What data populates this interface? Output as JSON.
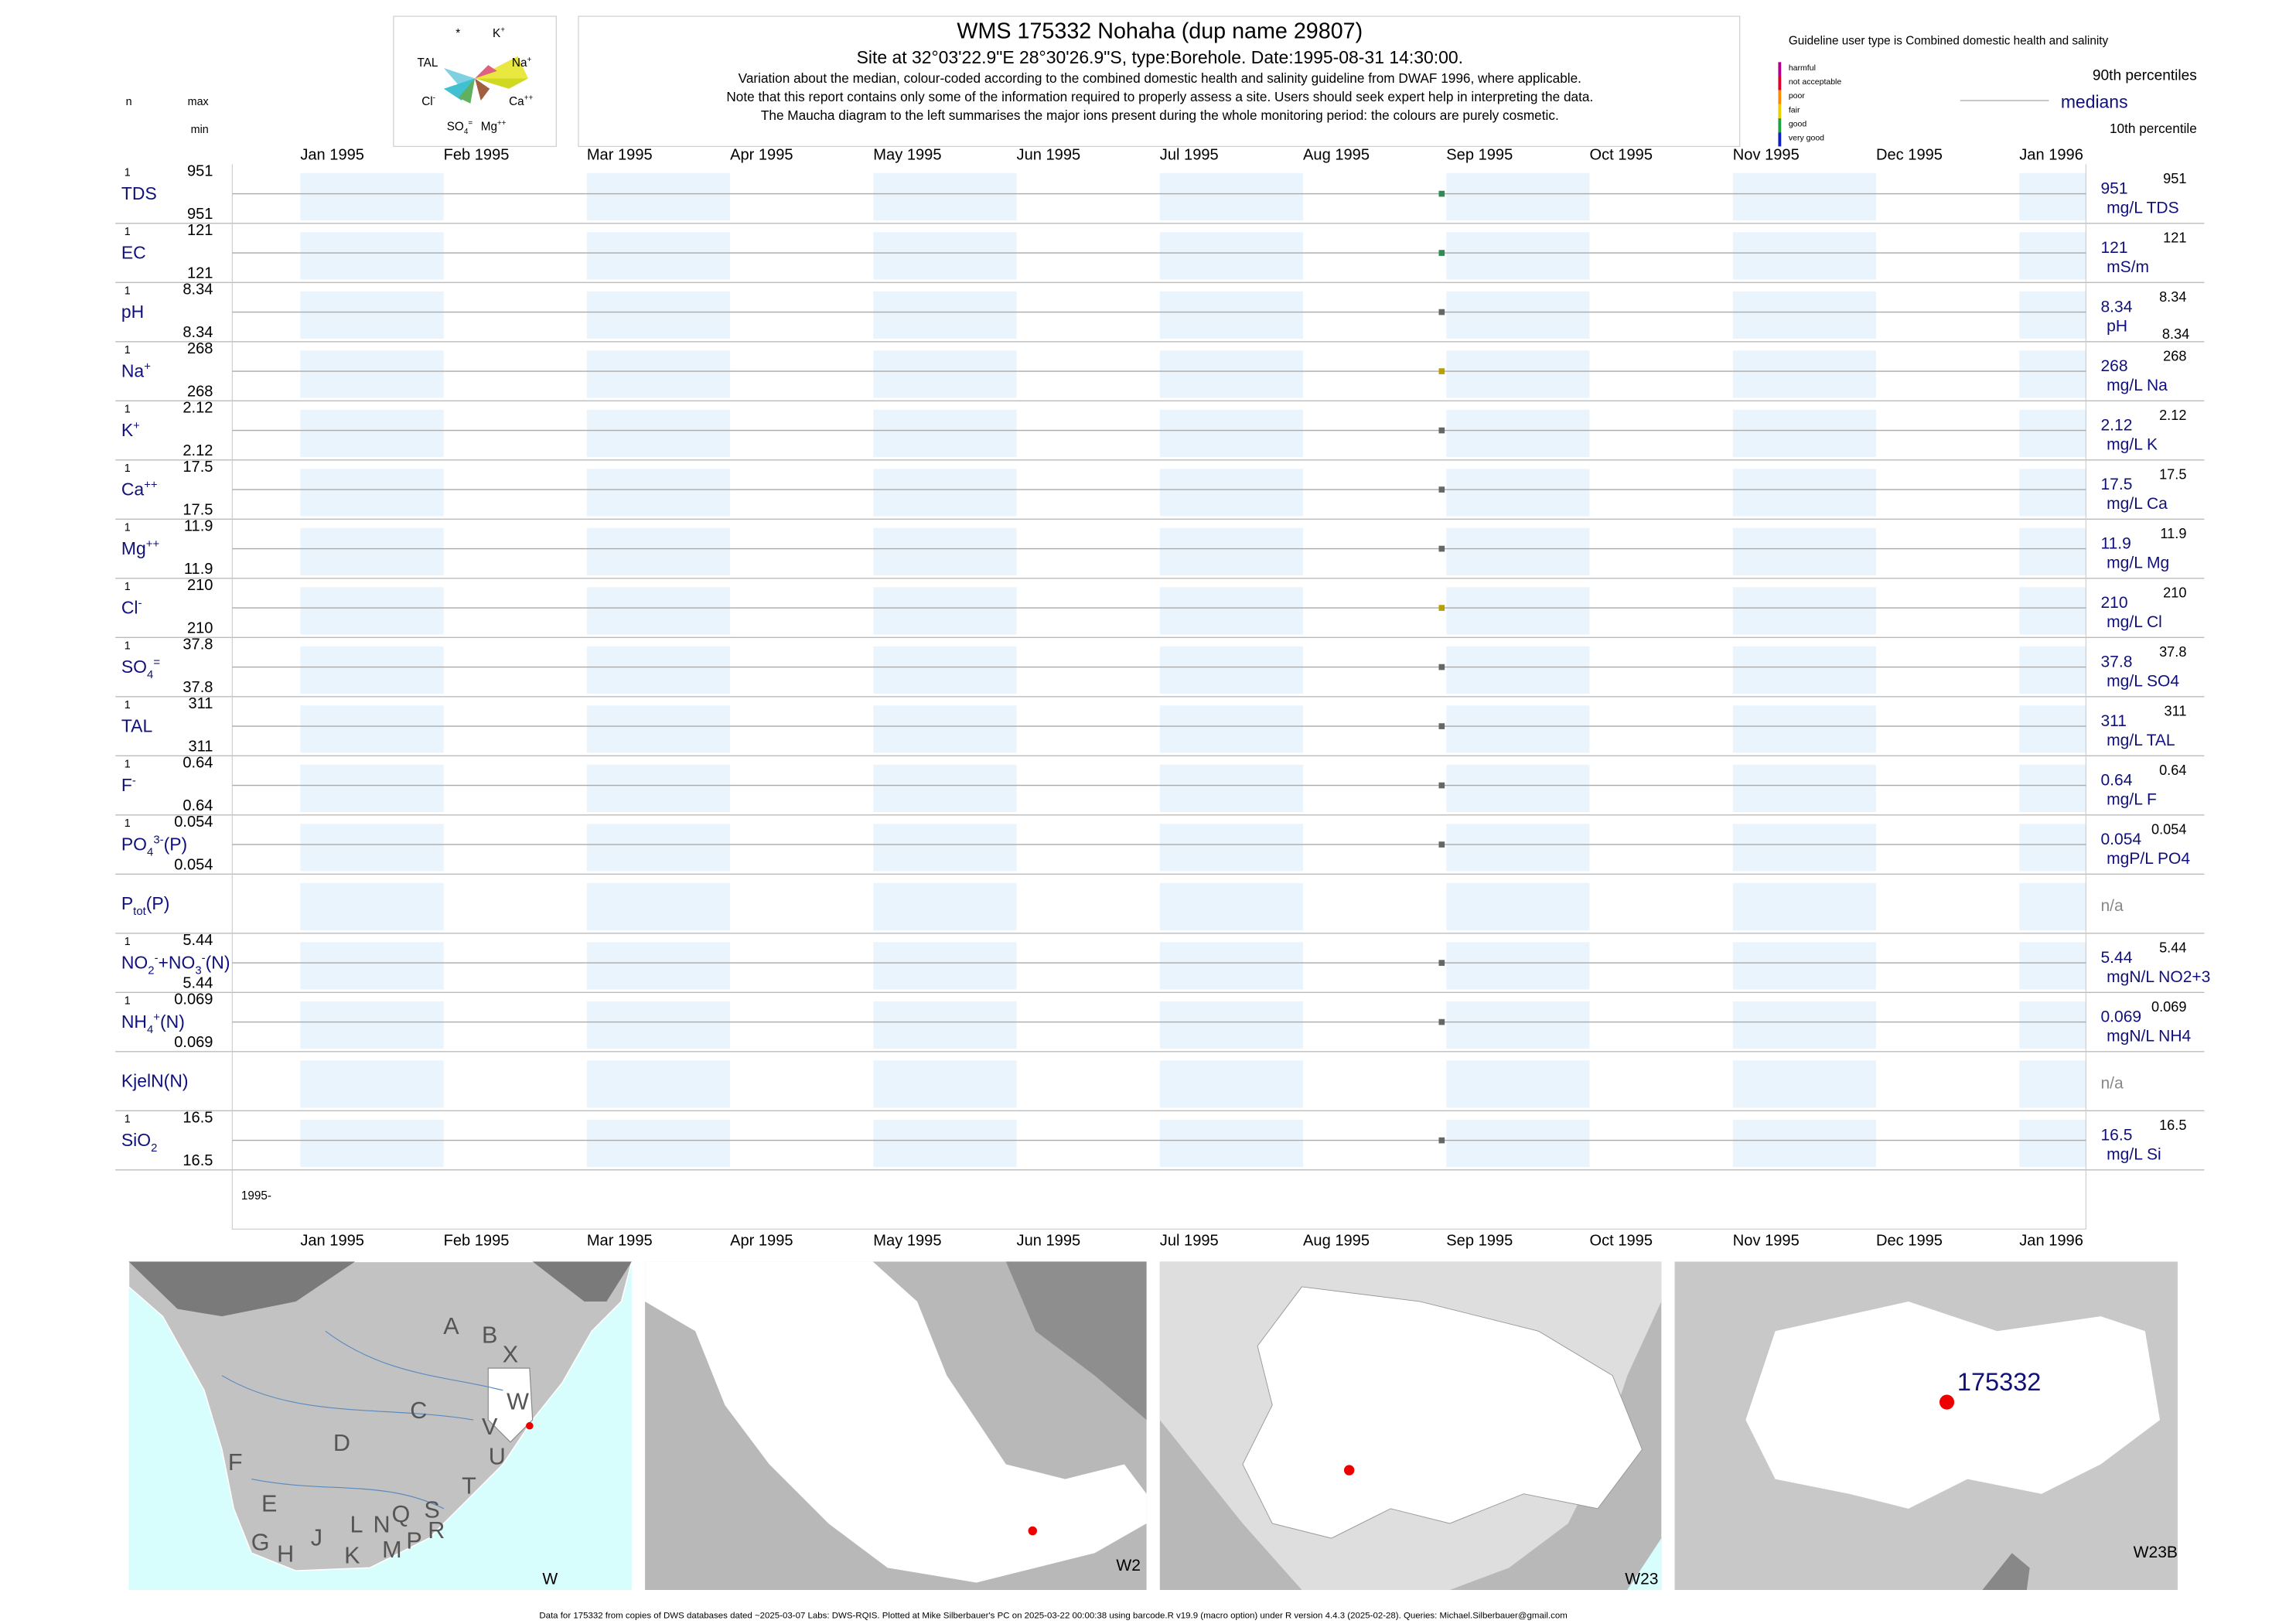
{
  "header": {
    "title": "WMS 175332  Nohaha (dup name 29807)",
    "site": "Site at 32°03'22.9\"E 28°30'26.9\"S, type:Borehole. Date:",
    "date": "1995-08-31",
    "time": " 14:30:00.",
    "notes": [
      "Variation about the median,  colour-coded according to the combined domestic health and salinity guideline from DWAF 1996, where applicable.",
      "Note that this report contains only some of the information required to properly assess a site. Users should seek expert help in interpreting the data.",
      "The Maucha diagram to the left summarises the major ions present during the whole monitoring period: the colours are purely cosmetic."
    ]
  },
  "maucha": [
    [
      {
        "text": "*"
      }
    ],
    [
      {
        "text": "K"
      },
      {
        "text": "+",
        "style": "sup"
      }
    ],
    [
      {
        "text": "TAL"
      }
    ],
    [
      {
        "text": "Na"
      },
      {
        "text": "+",
        "style": "sup"
      }
    ],
    [
      {
        "text": "Cl"
      },
      {
        "text": "-",
        "style": "sup"
      }
    ],
    [
      {
        "text": "Ca"
      },
      {
        "text": "++",
        "style": "sup"
      }
    ],
    [
      {
        "text": "SO"
      },
      {
        "text": "4",
        "style": "sub"
      },
      {
        "text": "=",
        "style": "sup"
      }
    ],
    [
      {
        "text": "Mg"
      },
      {
        "text": "++",
        "style": "sup"
      }
    ]
  ],
  "columns": {
    "n": "n",
    "max": "max",
    "min": "min"
  },
  "legend": {
    "guideline": "Guideline user type is Combined domestic health and salinity",
    "classes": [
      {
        "name": "harmful",
        "color": "#b0008a"
      },
      {
        "name": "not acceptable",
        "color": "#e0002a"
      },
      {
        "name": "poor",
        "color": "#ff8c00"
      },
      {
        "name": "fair",
        "color": "#e8d000"
      },
      {
        "name": "good",
        "color": "#20a040"
      },
      {
        "name": "very good",
        "color": "#1020c0"
      }
    ],
    "p90": "90th percentiles",
    "median": "medians",
    "p10": "10th percentile"
  },
  "months": [
    "Jan 1995",
    "Feb 1995",
    "Mar 1995",
    "Apr 1995",
    "May 1995",
    "Jun 1995",
    "Jul 1995",
    "Aug 1995",
    "Sep 1995",
    "Oct 1995",
    "Nov 1995",
    "Dec 1995",
    "Jan 1996"
  ],
  "year_label": "1995-",
  "rows": [
    {
      "label": [
        {
          "text": "TDS"
        }
      ],
      "n": 1,
      "max": 951,
      "min": 951,
      "median": 951,
      "p90": 951,
      "unit": "mg/L TDS",
      "color": "#2e8b57"
    },
    {
      "label": [
        {
          "text": "EC"
        }
      ],
      "n": 1,
      "max": 121,
      "min": 121,
      "median": 121,
      "p90": 121,
      "unit": "mS/m",
      "color": "#2e8b57"
    },
    {
      "label": [
        {
          "text": "pH"
        }
      ],
      "n": 1,
      "max": 8.34,
      "min": 8.34,
      "median": 8.34,
      "p90": 8.34,
      "p10": 8.34,
      "unit": "pH",
      "color": "#666666"
    },
    {
      "label": [
        {
          "text": "Na"
        },
        {
          "text": "+",
          "style": "sup"
        }
      ],
      "n": 1,
      "max": 268,
      "min": 268,
      "median": 268,
      "p90": 268,
      "unit": "mg/L Na",
      "color": "#b8a000"
    },
    {
      "label": [
        {
          "text": "K"
        },
        {
          "text": "+",
          "style": "sup"
        }
      ],
      "n": 1,
      "max": 2.12,
      "min": 2.12,
      "median": 2.12,
      "p90": 2.12,
      "unit": "mg/L K",
      "color": "#666666"
    },
    {
      "label": [
        {
          "text": "Ca"
        },
        {
          "text": "++",
          "style": "sup"
        }
      ],
      "n": 1,
      "max": 17.5,
      "min": 17.5,
      "median": 17.5,
      "p90": 17.5,
      "unit": "mg/L Ca",
      "color": "#666666"
    },
    {
      "label": [
        {
          "text": "Mg"
        },
        {
          "text": "++",
          "style": "sup"
        }
      ],
      "n": 1,
      "max": 11.9,
      "min": 11.9,
      "median": 11.9,
      "p90": 11.9,
      "unit": "mg/L Mg",
      "color": "#666666"
    },
    {
      "label": [
        {
          "text": "Cl"
        },
        {
          "text": "-",
          "style": "sup"
        }
      ],
      "n": 1,
      "max": 210,
      "min": 210,
      "median": 210,
      "p90": 210,
      "unit": "mg/L Cl",
      "color": "#b8a000"
    },
    {
      "label": [
        {
          "text": "SO"
        },
        {
          "text": "4",
          "style": "sub"
        },
        {
          "text": "=",
          "style": "sup"
        }
      ],
      "n": 1,
      "max": 37.8,
      "min": 37.8,
      "median": 37.8,
      "p90": 37.8,
      "unit": "mg/L SO4",
      "color": "#666666"
    },
    {
      "label": [
        {
          "text": "TAL"
        }
      ],
      "n": 1,
      "max": 311,
      "min": 311,
      "median": 311,
      "p90": 311,
      "unit": "mg/L TAL",
      "color": "#666666"
    },
    {
      "label": [
        {
          "text": "F"
        },
        {
          "text": "-",
          "style": "sup"
        }
      ],
      "n": 1,
      "max": 0.64,
      "min": 0.64,
      "median": 0.64,
      "p90": 0.64,
      "unit": "mg/L F",
      "color": "#666666"
    },
    {
      "label": [
        {
          "text": "PO"
        },
        {
          "text": "4",
          "style": "sub"
        },
        {
          "text": "3-",
          "style": "sup"
        },
        {
          "text": "(P)"
        }
      ],
      "n": 1,
      "max": 0.054,
      "min": 0.054,
      "median": 0.054,
      "p90": 0.054,
      "unit": "mgP/L PO4",
      "color": "#666666"
    },
    {
      "label": [
        {
          "text": "P"
        },
        {
          "text": "tot",
          "style": "sub"
        },
        {
          "text": "(P)"
        }
      ],
      "median": "n/a"
    },
    {
      "label": [
        {
          "text": "NO"
        },
        {
          "text": "2",
          "style": "sub"
        },
        {
          "text": "-",
          "style": "sup"
        },
        {
          "text": "+NO"
        },
        {
          "text": "3",
          "style": "sub"
        },
        {
          "text": "-",
          "style": "sup"
        },
        {
          "text": "(N)"
        }
      ],
      "n": 1,
      "max": 5.44,
      "min": 5.44,
      "median": 5.44,
      "p90": 5.44,
      "unit": "mgN/L NO2+3",
      "color": "#666666"
    },
    {
      "label": [
        {
          "text": "NH"
        },
        {
          "text": "4",
          "style": "sub"
        },
        {
          "text": "+",
          "style": "sup"
        },
        {
          "text": "(N)"
        }
      ],
      "n": 1,
      "max": 0.069,
      "min": 0.069,
      "median": 0.069,
      "p90": 0.069,
      "unit": "mgN/L NH4",
      "color": "#666666"
    },
    {
      "label": [
        {
          "text": "KjelN(N)"
        }
      ],
      "median": "n/a"
    },
    {
      "label": [
        {
          "text": "SiO"
        },
        {
          "text": "2",
          "style": "sub"
        }
      ],
      "n": 1,
      "max": 16.5,
      "min": 16.5,
      "median": 16.5,
      "p90": 16.5,
      "unit": "mg/L Si",
      "color": "#666666"
    }
  ],
  "maps": {
    "regions": [
      "A",
      "B",
      "X",
      "C",
      "W",
      "V",
      "D",
      "U",
      "F",
      "T",
      "E",
      "S",
      "R",
      "Q",
      "N",
      "L",
      "J",
      "G",
      "H",
      "M",
      "P",
      "K"
    ],
    "panels": [
      "W",
      "W2",
      "W23",
      "W23B"
    ],
    "station": "175332"
  },
  "footer": "Data for 175332 from copies of DWS databases dated ~2025-03-07 Labs: DWS-RQIS. Plotted at Mike Silberbauer's PC on 2025-03-22 00:00:38 using barcode.R v19.9 (macro option) under R version 4.4.3 (2025-02-28). Queries: Michael.Silberbauer@gmail.com"
}
